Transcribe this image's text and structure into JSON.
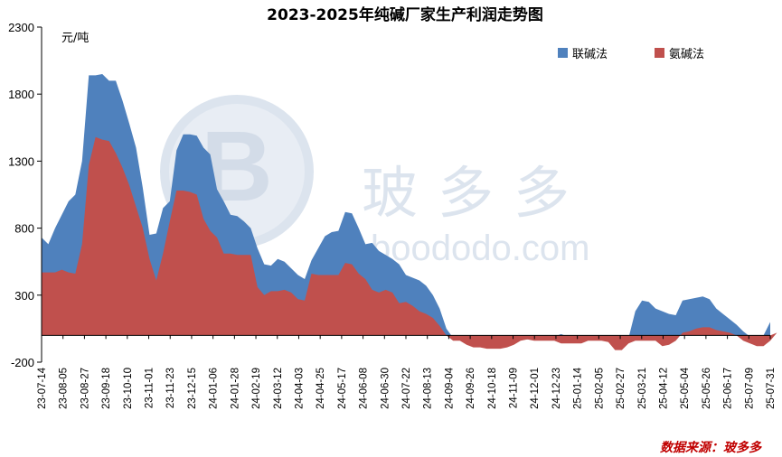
{
  "colors": {
    "lianjian": "#4f81bd",
    "anjian": "#c0504d",
    "source": "#c00000"
  },
  "watermark": {
    "text": "玻多多",
    "subtext": "boododo.com"
  },
  "chart_data": {
    "type": "area",
    "title": "2023-2025年纯碱厂家生产利润走势图",
    "ylabel": "元/吨",
    "ylim": [
      -200,
      2300
    ],
    "yticks": [
      -200,
      300,
      800,
      1300,
      1800,
      2300
    ],
    "legend_position": "top-right",
    "source": "数据来源：玻多多",
    "tick_labels": [
      "23-07-14",
      "23-08-05",
      "23-08-27",
      "23-09-18",
      "23-10-10",
      "23-11-01",
      "23-11-23",
      "23-12-15",
      "24-01-06",
      "24-01-28",
      "24-02-19",
      "24-03-12",
      "24-04-03",
      "24-04-25",
      "24-05-17",
      "24-06-08",
      "24-06-30",
      "24-07-22",
      "24-08-13",
      "24-09-04",
      "24-09-26",
      "24-10-18",
      "24-11-09",
      "24-12-01",
      "24-12-23",
      "25-01-14",
      "25-02-05",
      "25-02-27",
      "25-03-21",
      "25-04-12",
      "25-05-04",
      "25-05-26",
      "25-06-17",
      "25-07-09",
      "25-07-31"
    ],
    "series": [
      {
        "name": "联碱法",
        "values": [
          730,
          680,
          800,
          900,
          1000,
          1050,
          1300,
          1940,
          1940,
          1950,
          1900,
          1900,
          1750,
          1580,
          1400,
          1100,
          750,
          760,
          950,
          1000,
          1380,
          1500,
          1500,
          1490,
          1400,
          1350,
          1090,
          1000,
          900,
          890,
          850,
          800,
          650,
          530,
          520,
          570,
          550,
          500,
          450,
          420,
          560,
          650,
          740,
          770,
          780,
          920,
          910,
          800,
          680,
          690,
          630,
          600,
          570,
          530,
          450,
          430,
          410,
          370,
          300,
          200,
          50,
          -20,
          -30,
          -30,
          -30,
          -30,
          -30,
          -30,
          -30,
          -30,
          -30,
          -30,
          -30,
          -30,
          -30,
          -10,
          -10,
          10,
          -10,
          -20,
          -20,
          -30,
          -30,
          -30,
          -30,
          -30,
          -20,
          -20,
          180,
          260,
          250,
          200,
          180,
          160,
          150,
          260,
          270,
          280,
          290,
          270,
          200,
          160,
          120,
          80,
          30,
          -10,
          -40,
          0,
          100
        ]
      },
      {
        "name": "氨碱法",
        "values": [
          470,
          470,
          470,
          490,
          470,
          460,
          680,
          1270,
          1480,
          1460,
          1450,
          1360,
          1250,
          1120,
          960,
          800,
          570,
          410,
          610,
          850,
          1080,
          1080,
          1070,
          1050,
          870,
          780,
          730,
          610,
          610,
          600,
          600,
          600,
          360,
          300,
          330,
          330,
          340,
          320,
          270,
          260,
          460,
          450,
          450,
          450,
          450,
          540,
          530,
          460,
          420,
          340,
          320,
          340,
          320,
          240,
          250,
          220,
          180,
          160,
          130,
          70,
          0,
          -40,
          -40,
          -70,
          -90,
          -90,
          -100,
          -100,
          -100,
          -90,
          -70,
          -40,
          -30,
          -40,
          -40,
          -40,
          -40,
          -60,
          -60,
          -60,
          -60,
          -40,
          -40,
          -40,
          -50,
          -110,
          -110,
          -60,
          -40,
          -40,
          -40,
          -40,
          -80,
          -70,
          -40,
          20,
          30,
          50,
          60,
          60,
          40,
          30,
          20,
          0,
          -40,
          -60,
          -80,
          -80,
          -40,
          20
        ]
      }
    ]
  }
}
